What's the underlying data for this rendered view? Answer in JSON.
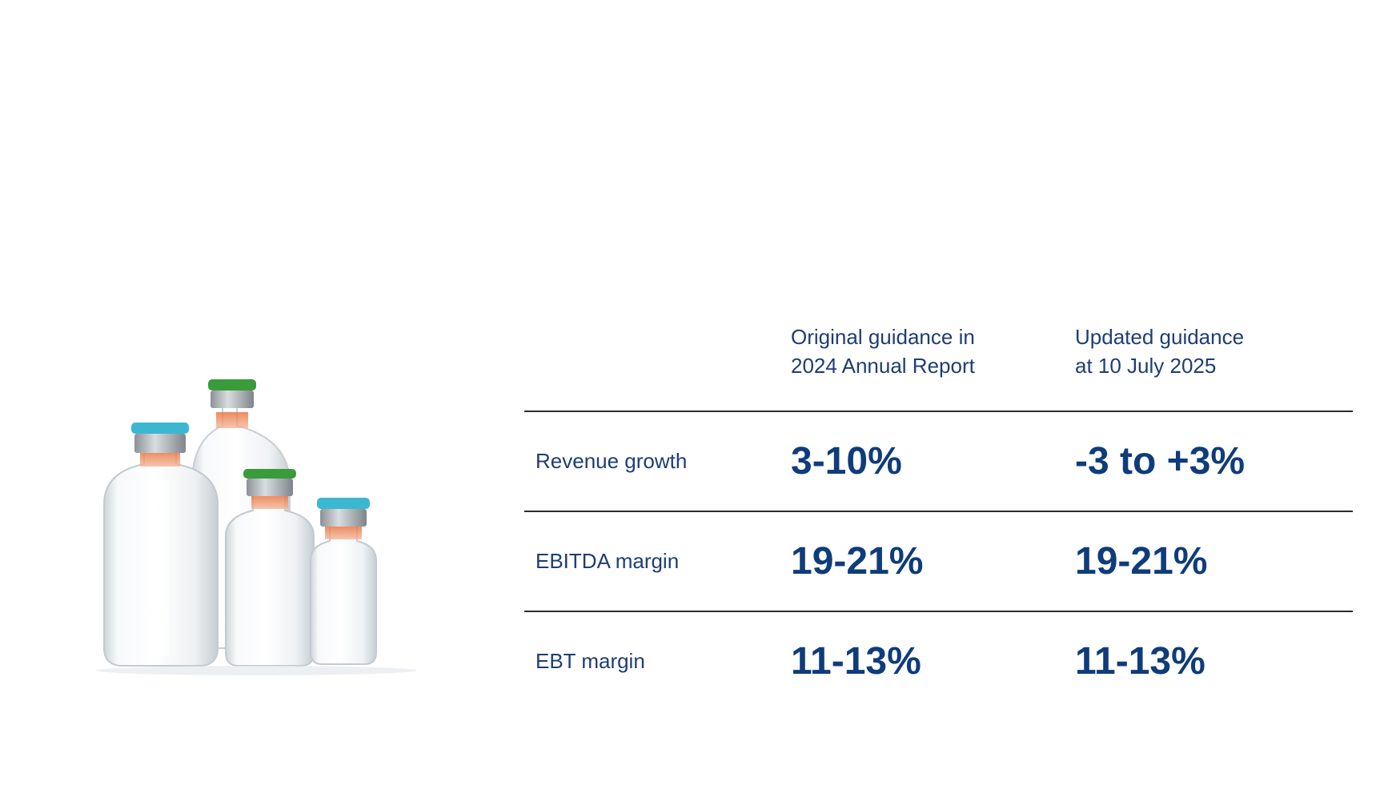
{
  "table": {
    "headers": [
      "",
      "Original guidance in\n2024 Annual Report",
      "Updated guidance\nat 10 July 2025"
    ],
    "rows": [
      {
        "label": "Revenue growth",
        "original": "3-10%",
        "updated": "-3 to +3%"
      },
      {
        "label": "EBITDA margin",
        "original": "19-21%",
        "updated": "19-21%"
      },
      {
        "label": "EBT margin",
        "original": "11-13%",
        "updated": "11-13%"
      }
    ]
  },
  "colors": {
    "text_primary": "#1f3d74",
    "value_text": "#0f3c7a",
    "divider": "#2b2b2b",
    "cap_green": "#3a9b3a",
    "cap_cyan": "#3bb7d1"
  },
  "image": {
    "icon": "glass-vials-illustration"
  }
}
